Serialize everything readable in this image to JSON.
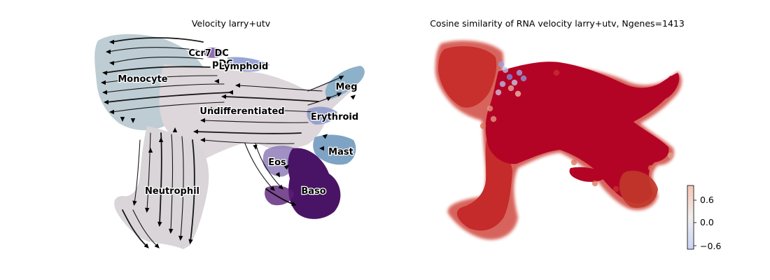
{
  "chart_data": [
    {
      "type": "scatter",
      "title": "Velocity larry+utv",
      "description_kind": "embedding with velocity streamlines",
      "grid": false,
      "axes_visible": false,
      "clusters": [
        {
          "name": "Ccr7 DC",
          "color": "#6a3d9a"
        },
        {
          "name": "pDC",
          "color": "#8c6bb1"
        },
        {
          "name": "Lymphoid",
          "color": "#6b7fc4"
        },
        {
          "name": "Monocyte",
          "color": "#b7c9d0"
        },
        {
          "name": "Meg",
          "color": "#8db1c8"
        },
        {
          "name": "Undifferentiated",
          "color": "#ddd6da"
        },
        {
          "name": "Erythroid",
          "color": "#7a86c4"
        },
        {
          "name": "Mast",
          "color": "#7ea3c4"
        },
        {
          "name": "Eos",
          "color": "#8f7cb8"
        },
        {
          "name": "Neutrophil",
          "color": "#d8d4d8"
        },
        {
          "name": "Baso",
          "color": "#4a1466"
        }
      ],
      "streamline_color": "#000000"
    },
    {
      "type": "scatter",
      "title": "Cosine similarity of RNA velocity larry+utv, Ngenes=1413",
      "grid": false,
      "axes_visible": false,
      "colormap": "coolwarm",
      "dominant_value_color": "#b40426",
      "colorbar": {
        "ticks": [
          "0.6",
          "0.0",
          "−0.6"
        ],
        "range": [
          -0.7,
          0.75
        ],
        "colors": {
          "low": "#c9d4f5",
          "mid": "#f0eeee",
          "high": "#f5c5b3"
        }
      }
    }
  ]
}
